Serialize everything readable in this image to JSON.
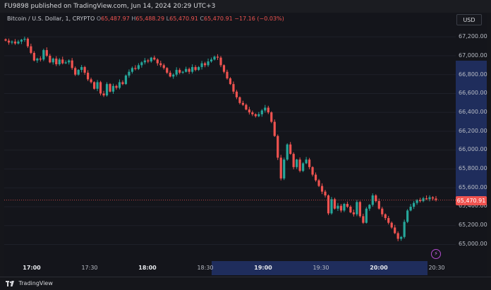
{
  "header": {
    "published_text": "FU9898 published on TradingView.com, Jun 14, 2024 20:29 UTC+3"
  },
  "legend": {
    "symbol": "Bitcoin / U.S. Dollar, 1, CRYPTO",
    "o_label": "O",
    "o_value": "65,487.97",
    "h_label": "H",
    "h_value": "65,488.29",
    "l_label": "L",
    "l_value": "65,470.91",
    "c_label": "C",
    "c_value": "65,470.91",
    "change": "−17.16 (−0.03%)"
  },
  "currency_button": "USD",
  "price_axis": {
    "ticks": [
      "67,200.00",
      "67,000.00",
      "66,800.00",
      "66,600.00",
      "66,400.00",
      "66,200.00",
      "66,000.00",
      "65,800.00",
      "65,600.00",
      "65,400.00",
      "65,200.00",
      "65,000.00"
    ],
    "last_price": "65,470.91"
  },
  "time_axis": {
    "ticks": [
      {
        "label": "17:00",
        "bold": true
      },
      {
        "label": "17:30",
        "bold": false
      },
      {
        "label": "18:00",
        "bold": true
      },
      {
        "label": "18:30",
        "bold": false
      },
      {
        "label": "19:00",
        "bold": true
      },
      {
        "label": "19:30",
        "bold": false
      },
      {
        "label": "20:00",
        "bold": true
      },
      {
        "label": "20:30",
        "bold": false
      }
    ]
  },
  "footer": {
    "brand": "TradingView"
  },
  "colors": {
    "up": "#26a69a",
    "down": "#ef5350",
    "highlight": "#1f2d5c",
    "background": "#14151b"
  },
  "chart_data": {
    "type": "candlestick",
    "title": "Bitcoin / U.S. Dollar, 1, CRYPTO",
    "xlabel": "",
    "ylabel": "",
    "ylim": [
      64880,
      67300
    ],
    "x_range": [
      "16:46",
      "20:35"
    ],
    "last_price": 65470.91,
    "series": [
      {
        "values": [
          67160,
          67140,
          67150,
          67130,
          67150,
          67170,
          67180,
          67100,
          67030,
          66950,
          66970,
          66960,
          67060,
          67000,
          66930,
          66970,
          66910,
          66960,
          66920,
          66930,
          66950,
          66870,
          66800,
          66850,
          66880,
          66820,
          66750,
          66720,
          66650,
          66720,
          66600,
          66580,
          66700,
          66620,
          66680,
          66660,
          66720,
          66700,
          66790,
          66830,
          66870,
          66860,
          66900,
          66930,
          66950,
          66940,
          66980,
          66960,
          66920,
          66900,
          66870,
          66820,
          66780,
          66800,
          66850,
          66820,
          66830,
          66860,
          66830,
          66880,
          66850,
          66880,
          66920,
          66900,
          66940,
          66960,
          66990,
          66980,
          66900,
          66830,
          66760,
          66700,
          66620,
          66560,
          66500,
          66480,
          66430,
          66400,
          66380,
          66360,
          66380,
          66420,
          66450,
          66400,
          66300,
          66150,
          65920,
          65700,
          65900,
          66060,
          65960,
          65820,
          65900,
          65780,
          65860,
          65900,
          65820,
          65740,
          65680,
          65620,
          65560,
          65520,
          65330,
          65480,
          65380,
          65410,
          65360,
          65430,
          65400,
          65340,
          65320,
          65450,
          65300,
          65230,
          65380,
          65420,
          65520,
          65460,
          65380,
          65320,
          65280,
          65230,
          65180,
          65120,
          65060,
          65080,
          65240,
          65360,
          65400,
          65440,
          65470,
          65460,
          65490,
          65480,
          65500,
          65487,
          65471
        ]
      }
    ]
  }
}
